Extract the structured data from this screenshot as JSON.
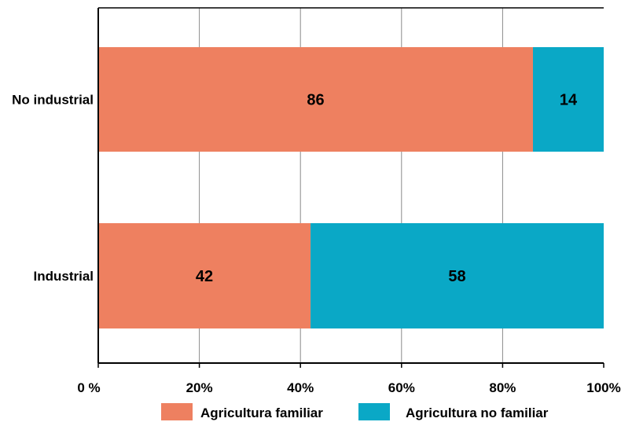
{
  "chart_data": {
    "type": "bar",
    "orientation": "horizontal",
    "stacked": true,
    "title": "",
    "xlabel": "",
    "ylabel": "",
    "xlim": [
      0,
      100
    ],
    "x_ticks": [
      0,
      20,
      40,
      60,
      80,
      100
    ],
    "x_tick_labels": [
      "0 %",
      "20%",
      "40%",
      "60%",
      "80%",
      "100%"
    ],
    "grid": "vertical",
    "legend_position": "bottom",
    "categories": [
      "No industrial",
      "Industrial"
    ],
    "series": [
      {
        "name": "Agricultura familiar",
        "color": "#ee8060",
        "values": [
          86,
          42
        ],
        "labels": [
          "86",
          "42"
        ]
      },
      {
        "name": "Agricultura no familiar",
        "color": "#0aa8c6",
        "values": [
          14,
          58
        ],
        "labels": [
          "14",
          "58"
        ]
      }
    ]
  }
}
